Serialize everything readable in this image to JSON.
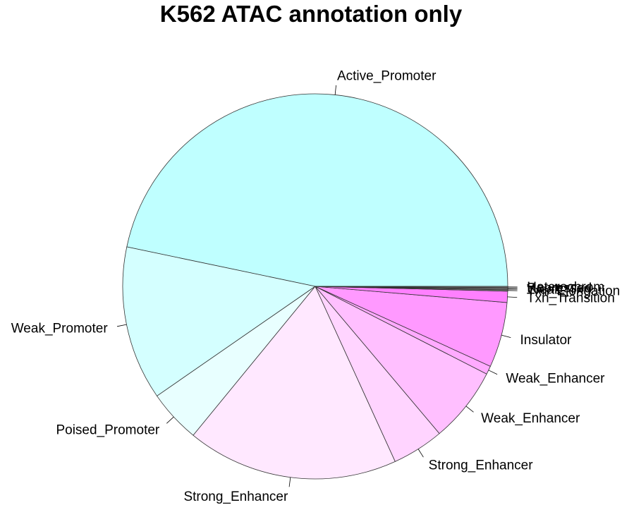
{
  "chart_data": {
    "type": "pie",
    "title": "K562 ATAC annotation only",
    "slices": [
      {
        "label": "Active_Promoter",
        "value": 49.5,
        "color": "#BFFFFF"
      },
      {
        "label": "Weak_Promoter",
        "value": 13.7,
        "color": "#D4FFFF"
      },
      {
        "label": "Poised_Promoter",
        "value": 4.7,
        "color": "#E8FFFF"
      },
      {
        "label": "Strong_Enhancer",
        "value": 18.8,
        "color": "#FFE8FF"
      },
      {
        "label": "Strong_Enhancer",
        "value": 4.6,
        "color": "#FFD4FF"
      },
      {
        "label": "Weak_Enhancer",
        "value": 6.7,
        "color": "#FFBFFF"
      },
      {
        "label": "Weak_Enhancer",
        "value": 0.75,
        "color": "#FFAAFF"
      },
      {
        "label": "Insulator",
        "value": 5.8,
        "color": "#FF99FF"
      },
      {
        "label": "Txn_Transition",
        "value": 1.0,
        "color": "#FF80FF"
      },
      {
        "label": "Txn_Elongation",
        "value": 0.12,
        "color": "#7F7F7F"
      },
      {
        "label": "Weak_Txn",
        "value": 0.1,
        "color": "#7F7F7F"
      },
      {
        "label": "Repressed",
        "value": 0.1,
        "color": "#7F7F7F"
      },
      {
        "label": "Heterochrom",
        "value": 0.1,
        "color": "#7F7F7F"
      }
    ]
  }
}
